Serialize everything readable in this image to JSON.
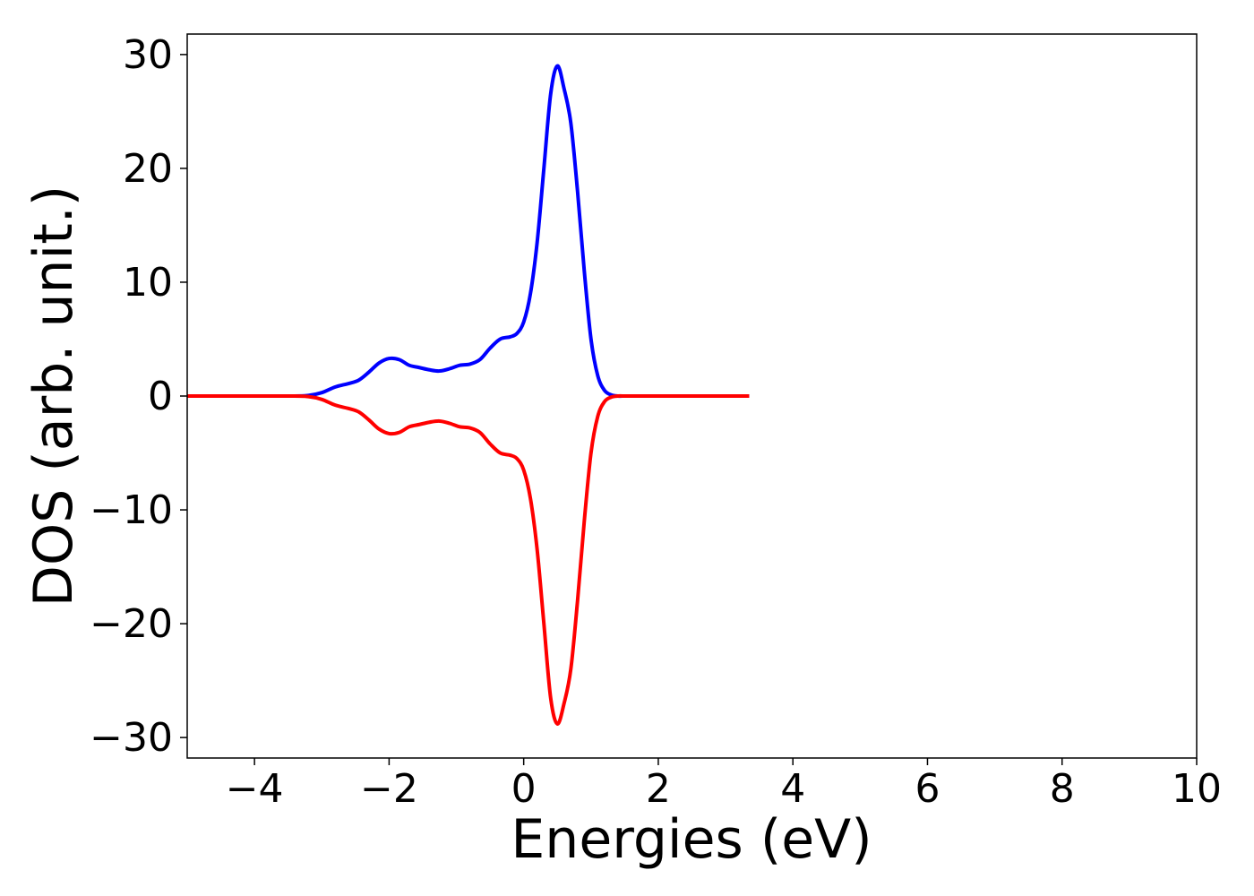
{
  "chart_data": {
    "type": "line",
    "title": "",
    "xlabel": "Energies (eV)",
    "ylabel": "DOS (arb. unit.)",
    "xlim": [
      -5,
      10
    ],
    "ylim": [
      -31.8,
      31.8
    ],
    "xticks": [
      -4,
      -2,
      0,
      2,
      4,
      6,
      8,
      10
    ],
    "xtick_labels": [
      "−4",
      "−2",
      "0",
      "2",
      "4",
      "6",
      "8",
      "10"
    ],
    "yticks": [
      30,
      20,
      10,
      0,
      -10,
      -20,
      -30
    ],
    "ytick_labels": [
      "30",
      "20",
      "10",
      "0",
      "−10",
      "−20",
      "−30"
    ],
    "grid": false,
    "legend": "none",
    "series": [
      {
        "color": "#0000ff",
        "x": [
          -5.0,
          -3.5,
          -3.2,
          -3.0,
          -2.8,
          -2.6,
          -2.45,
          -2.3,
          -2.15,
          -2.0,
          -1.85,
          -1.7,
          -1.55,
          -1.4,
          -1.25,
          -1.1,
          -0.95,
          -0.8,
          -0.65,
          -0.5,
          -0.35,
          -0.2,
          -0.1,
          0.0,
          0.1,
          0.2,
          0.3,
          0.4,
          0.5,
          0.6,
          0.7,
          0.8,
          0.9,
          1.0,
          1.1,
          1.2,
          1.3,
          1.4,
          1.5,
          1.6,
          1.7,
          2.0,
          3.35
        ],
        "y": [
          0,
          0,
          0.05,
          0.3,
          0.8,
          1.1,
          1.4,
          2.1,
          2.9,
          3.3,
          3.2,
          2.7,
          2.5,
          2.3,
          2.2,
          2.4,
          2.7,
          2.8,
          3.2,
          4.2,
          5.0,
          5.2,
          5.5,
          6.5,
          9.0,
          13.5,
          20.0,
          26.5,
          29.0,
          27.0,
          24.0,
          18.0,
          11.0,
          5.0,
          1.8,
          0.5,
          0.1,
          0,
          0,
          0,
          0,
          0,
          0
        ]
      },
      {
        "color": "#ff0000",
        "x": [
          -5.0,
          -3.5,
          -3.2,
          -3.0,
          -2.8,
          -2.6,
          -2.45,
          -2.3,
          -2.15,
          -2.0,
          -1.85,
          -1.7,
          -1.55,
          -1.4,
          -1.25,
          -1.1,
          -0.95,
          -0.8,
          -0.65,
          -0.5,
          -0.35,
          -0.2,
          -0.1,
          0.0,
          0.1,
          0.2,
          0.3,
          0.4,
          0.5,
          0.6,
          0.7,
          0.8,
          0.9,
          1.0,
          1.1,
          1.2,
          1.3,
          1.4,
          1.5,
          1.6,
          1.7,
          2.0,
          3.35
        ],
        "y": [
          0,
          0,
          -0.05,
          -0.3,
          -0.8,
          -1.1,
          -1.4,
          -2.1,
          -2.9,
          -3.3,
          -3.2,
          -2.7,
          -2.5,
          -2.3,
          -2.2,
          -2.4,
          -2.7,
          -2.8,
          -3.2,
          -4.2,
          -5.0,
          -5.2,
          -5.5,
          -6.5,
          -9.0,
          -13.5,
          -20.0,
          -26.5,
          -28.8,
          -27.0,
          -24.0,
          -18.0,
          -11.0,
          -5.0,
          -1.8,
          -0.5,
          -0.1,
          0,
          0,
          0,
          0,
          0,
          0
        ]
      }
    ]
  }
}
